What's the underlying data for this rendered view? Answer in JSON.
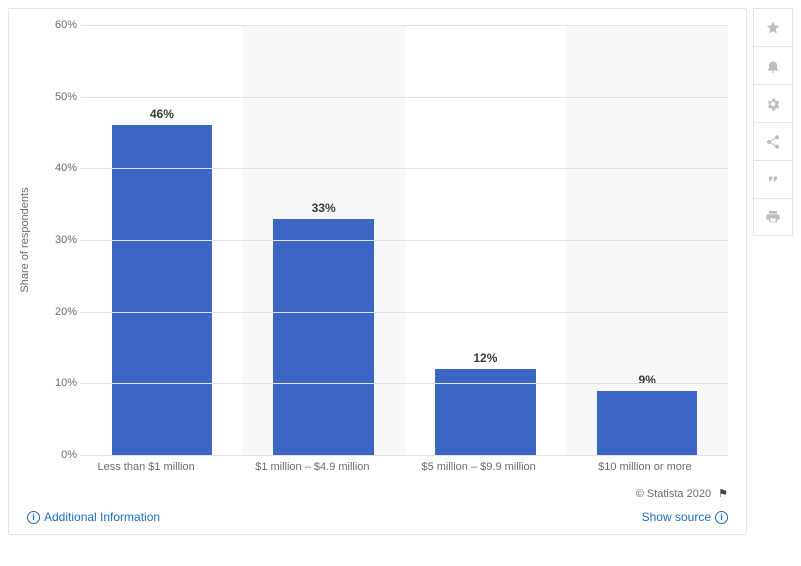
{
  "chart": {
    "type": "bar",
    "ylabel": "Share of respondents",
    "ylim": [
      0,
      60
    ],
    "ytick_step": 10,
    "categories": [
      "Less than $1 million",
      "$1 million – $4.9 million",
      "$5 million – $9.9 million",
      "$10 million or more"
    ],
    "values": [
      46,
      33,
      12,
      9
    ],
    "value_labels": [
      "46%",
      "33%",
      "12%",
      "9%"
    ],
    "bar_color": "#3b66c4",
    "grid_color": "#e3e3e3",
    "alt_band_color": "#f7f8fa",
    "background_color": "#ffffff",
    "label_fontsize": 11,
    "value_fontsize": 12,
    "bar_width_pct": 62
  },
  "footer": {
    "copyright": "© Statista 2020",
    "additional_info": "Additional Information",
    "show_source": "Show source"
  },
  "side_icons": [
    "star",
    "bell",
    "gear",
    "share",
    "quote",
    "print"
  ]
}
